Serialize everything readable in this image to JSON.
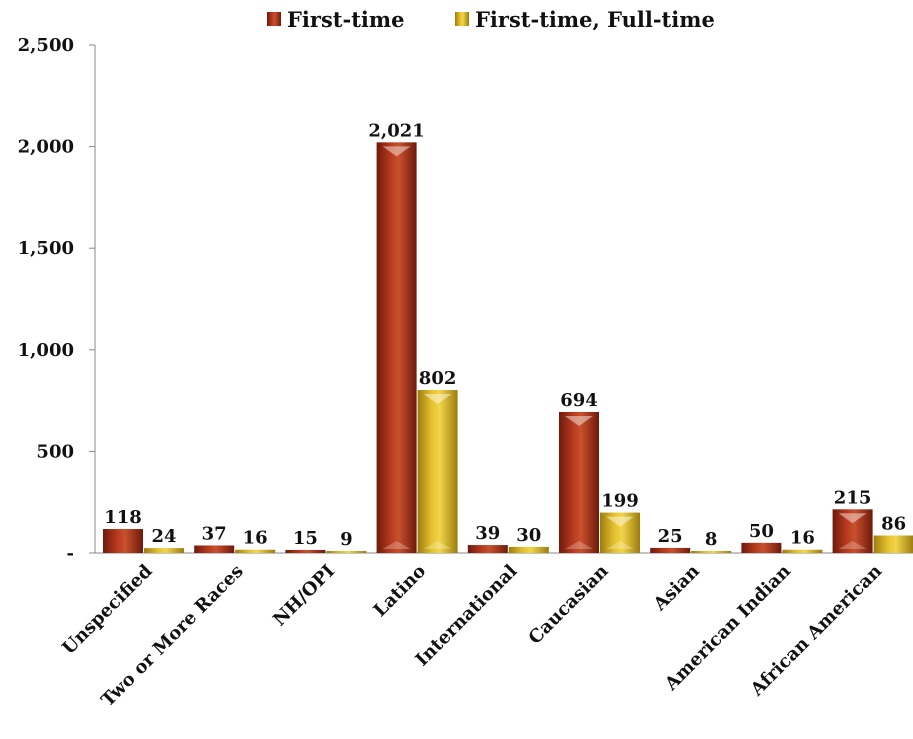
{
  "chart_data": {
    "type": "bar",
    "categories": [
      "Unspecified",
      "Two or More Races",
      "NH/OPI",
      "Latino",
      "International",
      "Caucasian",
      "Asian",
      "American Indian",
      "African American"
    ],
    "series": [
      {
        "name": "First-time",
        "values": [
          118,
          37,
          15,
          2021,
          39,
          694,
          25,
          50,
          215
        ],
        "labels": [
          "118",
          "37",
          "15",
          "2,021",
          "39",
          "694",
          "25",
          "50",
          "215"
        ],
        "color": "#A8331A"
      },
      {
        "name": "First-time, Full-time",
        "values": [
          24,
          16,
          9,
          802,
          30,
          199,
          8,
          16,
          86
        ],
        "labels": [
          "24",
          "16",
          "9",
          "802",
          "30",
          "199",
          "8",
          "16",
          "86"
        ],
        "color": "#E0B82A"
      }
    ],
    "y_ticks": [
      0,
      500,
      1000,
      1500,
      2000,
      2500
    ],
    "y_tick_labels": [
      "-",
      "500",
      "1,000",
      "1,500",
      "2,000",
      "2,500"
    ],
    "ylim": [
      0,
      2500
    ],
    "grid": false,
    "legend_position": "top"
  }
}
